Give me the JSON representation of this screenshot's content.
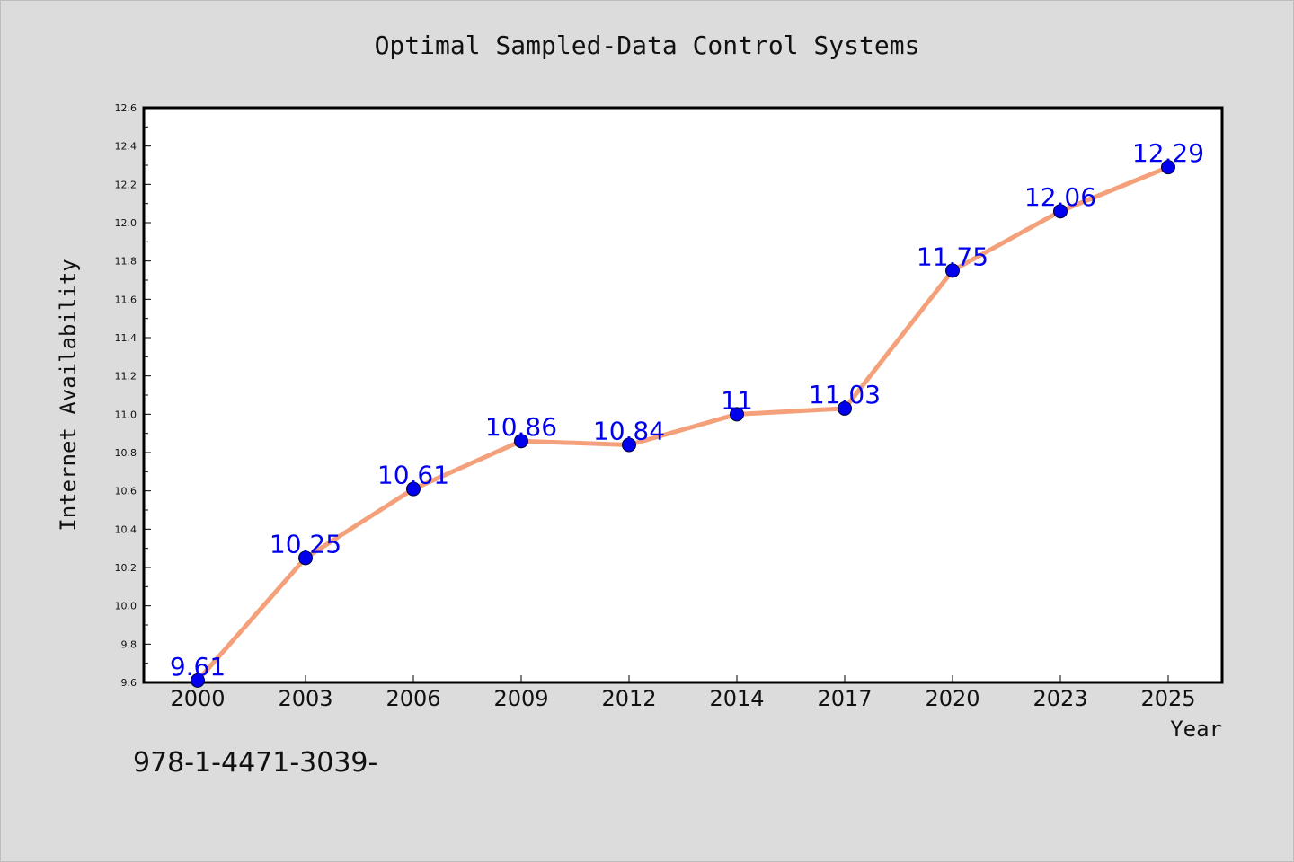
{
  "chart_data": {
    "type": "line",
    "title": "Optimal Sampled-Data Control Systems",
    "xlabel": "Year",
    "ylabel": "Internet Availability",
    "categories": [
      "2000",
      "2003",
      "2006",
      "2009",
      "2012",
      "2014",
      "2017",
      "2020",
      "2023",
      "2025"
    ],
    "series": [
      {
        "values": [
          9.61,
          10.25,
          10.61,
          10.86,
          10.84,
          11,
          11.03,
          11.75,
          12.06,
          12.29
        ],
        "data_labels": [
          "9.61",
          "10.25",
          "10.61",
          "10.86",
          "10.84",
          "11",
          "11.03",
          "11.75",
          "12.06",
          "12.29"
        ]
      }
    ],
    "ylim": [
      9.6,
      12.6
    ],
    "yticks": [
      "9.6",
      "9.8",
      "10.0",
      "10.2",
      "10.4",
      "10.6",
      "10.8",
      "11.0",
      "11.2",
      "11.4",
      "11.6",
      "11.8",
      "12.0",
      "12.2",
      "12.4",
      "12.6"
    ],
    "grid": false,
    "legend": "none",
    "colors": {
      "line": "#f4a07a",
      "marker": "#0000ee",
      "data_label": "#0000ee",
      "plot_background": "#ffffff",
      "page_background": "#dcdcdc"
    }
  },
  "footnote": "978-1-4471-3039-"
}
